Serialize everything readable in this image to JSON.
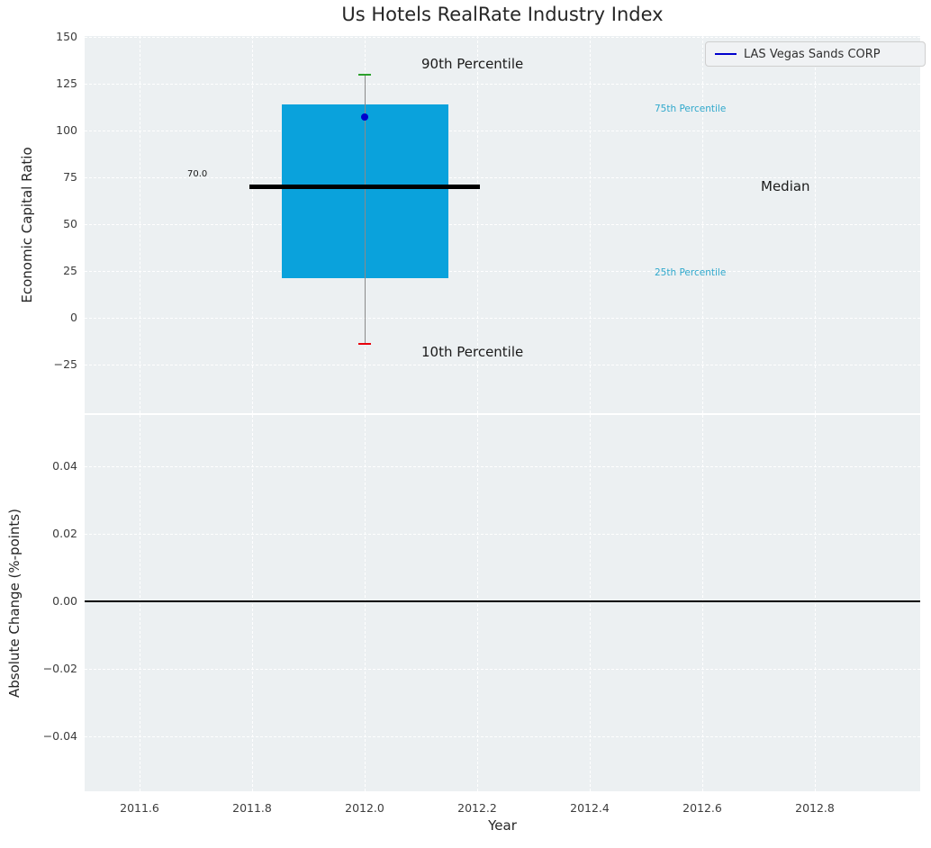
{
  "title": "Us Hotels RealRate Industry Index",
  "legend": {
    "label": "LAS Vegas Sands CORP"
  },
  "top_plot": {
    "ylabel": "Economic Capital Ratio",
    "yticks": [
      "150",
      "125",
      "100",
      "75",
      "50",
      "25",
      "0",
      "−25"
    ],
    "labels": {
      "p90": "90th Percentile",
      "p75": "75th Percentile",
      "median": "Median",
      "p25": "25th Percentile",
      "p10": "10th Percentile",
      "median_value": "70.0"
    }
  },
  "bottom_plot": {
    "ylabel": "Absolute Change (%-points)",
    "yticks": [
      "0.04",
      "0.02",
      "0.00",
      "−0.02",
      "−0.04"
    ]
  },
  "xaxis": {
    "label": "Year",
    "ticks": [
      "2011.6",
      "2011.8",
      "2012.0",
      "2012.2",
      "2012.4",
      "2012.6",
      "2012.8"
    ]
  },
  "colors": {
    "box_fill": "#0aa2dc",
    "percentile_label": "#2fa8cc",
    "p90_cap": "#2ca02c",
    "p10_cap": "#e8000b",
    "median_line": "#000000",
    "company_marker": "#0000cd",
    "whisker": "#8a8a8a",
    "plot_bg": "#ecf0f2"
  },
  "chart_data": [
    {
      "type": "box",
      "title": "Us Hotels RealRate Industry Index",
      "xlabel": "Year",
      "ylabel": "Economic Capital Ratio",
      "x": 2012.0,
      "xlim": [
        2011.5,
        2012.99
      ],
      "ylim": [
        -51,
        150
      ],
      "box": {
        "p10": -14,
        "p25": 21,
        "median": 70,
        "p75": 114,
        "p90": 130
      },
      "company_point": {
        "name": "LAS Vegas Sands CORP",
        "x": 2012.0,
        "y": 107
      },
      "annotations": [
        "90th Percentile",
        "75th Percentile",
        "Median",
        "25th Percentile",
        "10th Percentile",
        "70.0"
      ],
      "grid": true,
      "legend_position": "upper right"
    },
    {
      "type": "line",
      "xlabel": "Year",
      "ylabel": "Absolute Change (%-points)",
      "xlim": [
        2011.5,
        2012.99
      ],
      "ylim": [
        -0.056,
        0.056
      ],
      "series": [],
      "zero_line_y": 0,
      "grid": true
    }
  ]
}
